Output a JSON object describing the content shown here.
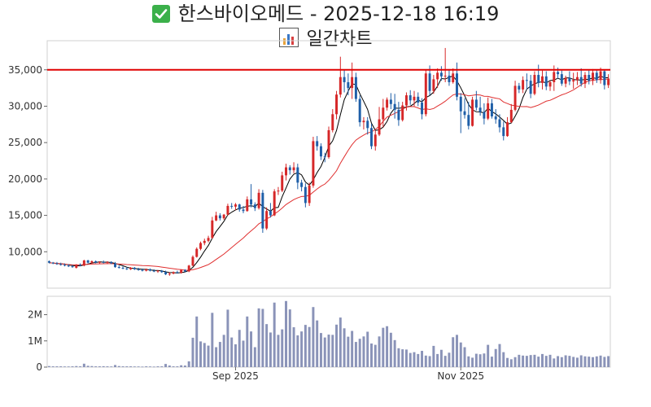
{
  "header": {
    "title": "한스바이오메드 - 2025-12-18 16:19",
    "subtitle": "일간차트",
    "check_icon": "check-mark-icon",
    "chart_icon": "bar-chart-icon",
    "check_color": "#3bb04a"
  },
  "chart_data": {
    "type": "candlestick",
    "up_color": "#d62728",
    "down_color": "#1f5fa8",
    "ma_short_color": "#000000",
    "ma_long_color": "#e03030",
    "hline_color": "#e00000",
    "volume_color": "#8a93b8",
    "price_axis": {
      "ticks": [
        10000,
        15000,
        20000,
        25000,
        30000,
        35000
      ],
      "tick_labels": [
        "10,000",
        "15,000",
        "20,000",
        "25,000",
        "30,000",
        "35,000"
      ],
      "ylim": [
        5000,
        39000
      ]
    },
    "volume_axis": {
      "ticks": [
        0,
        1000000,
        2000000
      ],
      "tick_labels": [
        "0",
        "1M",
        "2M"
      ],
      "ylim": [
        0,
        2700000
      ]
    },
    "x_tick_labels": [
      {
        "index": 48,
        "label": "Sep 2025"
      },
      {
        "index": 106,
        "label": "Nov 2025"
      }
    ],
    "reference_line": 35000,
    "n_sessions": 145,
    "candles": [
      [
        8700,
        8800,
        8400,
        8500
      ],
      [
        8500,
        8600,
        8300,
        8400
      ],
      [
        8400,
        8600,
        8200,
        8300
      ],
      [
        8300,
        8500,
        8100,
        8200
      ],
      [
        8200,
        8400,
        8000,
        8100
      ],
      [
        8100,
        8300,
        7900,
        8000
      ],
      [
        8000,
        8200,
        7800,
        7900
      ],
      [
        7800,
        8300,
        7700,
        8200
      ],
      [
        8200,
        8400,
        8000,
        8100
      ],
      [
        8100,
        8900,
        8000,
        8800
      ],
      [
        8800,
        8900,
        8400,
        8500
      ],
      [
        8500,
        8800,
        8300,
        8700
      ],
      [
        8700,
        8800,
        8400,
        8500
      ],
      [
        8500,
        8700,
        8300,
        8600
      ],
      [
        8600,
        8800,
        8400,
        8500
      ],
      [
        8500,
        8700,
        8300,
        8600
      ],
      [
        8600,
        8700,
        8300,
        8400
      ],
      [
        8400,
        8600,
        7800,
        7900
      ],
      [
        7900,
        8100,
        7700,
        7800
      ],
      [
        7800,
        8000,
        7600,
        7700
      ],
      [
        7700,
        7900,
        7500,
        7600
      ],
      [
        7600,
        7900,
        7500,
        7800
      ],
      [
        7800,
        7900,
        7500,
        7600
      ],
      [
        7600,
        7800,
        7400,
        7500
      ],
      [
        7500,
        7700,
        7300,
        7400
      ],
      [
        7400,
        7700,
        7300,
        7600
      ],
      [
        7600,
        7700,
        7300,
        7400
      ],
      [
        7400,
        7600,
        7200,
        7300
      ],
      [
        7300,
        7500,
        7100,
        7400
      ],
      [
        7400,
        7500,
        7100,
        7200
      ],
      [
        7200,
        7400,
        6800,
        6900
      ],
      [
        6900,
        7200,
        6700,
        7000
      ],
      [
        7000,
        7300,
        6900,
        7200
      ],
      [
        7200,
        7400,
        7000,
        7100
      ],
      [
        7100,
        7600,
        7000,
        7500
      ],
      [
        7500,
        7600,
        7200,
        7300
      ],
      [
        7300,
        8200,
        7200,
        8100
      ],
      [
        8100,
        9500,
        8000,
        9300
      ],
      [
        9300,
        10600,
        9200,
        10400
      ],
      [
        10400,
        11400,
        10200,
        11200
      ],
      [
        11200,
        11800,
        10900,
        11500
      ],
      [
        11500,
        12200,
        11300,
        11900
      ],
      [
        11900,
        14800,
        11800,
        14300
      ],
      [
        14300,
        15500,
        14200,
        15000
      ],
      [
        15000,
        15300,
        14300,
        14600
      ],
      [
        14600,
        15200,
        14400,
        15100
      ],
      [
        15100,
        16600,
        15000,
        16300
      ],
      [
        16300,
        16700,
        15900,
        16200
      ],
      [
        16200,
        16700,
        15700,
        16500
      ],
      [
        16500,
        16600,
        15500,
        15800
      ],
      [
        15800,
        16300,
        15300,
        15600
      ],
      [
        15600,
        17600,
        15500,
        17200
      ],
      [
        17200,
        19300,
        16100,
        16500
      ],
      [
        16500,
        16800,
        15600,
        16000
      ],
      [
        16000,
        18600,
        15800,
        18100
      ],
      [
        18100,
        18500,
        12600,
        13200
      ],
      [
        13200,
        16100,
        13000,
        15600
      ],
      [
        15600,
        16700,
        14700,
        15000
      ],
      [
        15000,
        18600,
        14900,
        18300
      ],
      [
        18300,
        18900,
        17800,
        18400
      ],
      [
        18400,
        21000,
        18200,
        20500
      ],
      [
        20500,
        22100,
        19800,
        21600
      ],
      [
        21600,
        21900,
        20600,
        21200
      ],
      [
        21200,
        22300,
        20800,
        21600
      ],
      [
        21600,
        22100,
        18600,
        19500
      ],
      [
        19500,
        19900,
        18300,
        18900
      ],
      [
        18900,
        19400,
        16100,
        16700
      ],
      [
        16700,
        19500,
        16300,
        19100
      ],
      [
        19100,
        25800,
        18800,
        25200
      ],
      [
        25200,
        25900,
        23900,
        24500
      ],
      [
        24500,
        24900,
        22600,
        23100
      ],
      [
        23100,
        23600,
        22300,
        23000
      ],
      [
        23000,
        27200,
        22800,
        26700
      ],
      [
        26700,
        29600,
        26400,
        28900
      ],
      [
        28900,
        32100,
        28200,
        31600
      ],
      [
        31600,
        36800,
        31200,
        34000
      ],
      [
        34000,
        35000,
        31900,
        33300
      ],
      [
        33300,
        34500,
        31500,
        32500
      ],
      [
        32500,
        36000,
        31000,
        34000
      ],
      [
        34000,
        34600,
        30600,
        31000
      ],
      [
        31000,
        31500,
        27200,
        27800
      ],
      [
        27800,
        28500,
        26800,
        28000
      ],
      [
        28000,
        28500,
        26100,
        27000
      ],
      [
        27000,
        27600,
        24100,
        24500
      ],
      [
        24500,
        26600,
        23900,
        26100
      ],
      [
        26100,
        29900,
        25900,
        28200
      ],
      [
        28200,
        31000,
        27100,
        29800
      ],
      [
        29800,
        31200,
        29400,
        30900
      ],
      [
        30900,
        31800,
        29600,
        30300
      ],
      [
        30300,
        31700,
        28300,
        29500
      ],
      [
        29500,
        30600,
        27300,
        28100
      ],
      [
        28100,
        30600,
        27900,
        30100
      ],
      [
        30100,
        31900,
        29400,
        31500
      ],
      [
        31500,
        32200,
        30200,
        30800
      ],
      [
        30800,
        32100,
        30000,
        31300
      ],
      [
        31300,
        31900,
        30000,
        30500
      ],
      [
        30500,
        31100,
        28200,
        28900
      ],
      [
        28900,
        35000,
        28600,
        34500
      ],
      [
        34500,
        35600,
        31500,
        32100
      ],
      [
        32100,
        34300,
        31700,
        33700
      ],
      [
        33700,
        35200,
        32500,
        34600
      ],
      [
        34600,
        35500,
        33500,
        34100
      ],
      [
        34100,
        38000,
        33300,
        34200
      ],
      [
        34200,
        35100,
        32800,
        33300
      ],
      [
        33300,
        35200,
        33100,
        34500
      ],
      [
        34500,
        36000,
        30800,
        31300
      ],
      [
        31300,
        31800,
        26300,
        29300
      ],
      [
        29300,
        31100,
        28300,
        28800
      ],
      [
        28800,
        30600,
        26800,
        27300
      ],
      [
        27300,
        31300,
        27200,
        30900
      ],
      [
        30900,
        32100,
        29400,
        29800
      ],
      [
        29800,
        31300,
        28700,
        29200
      ],
      [
        29200,
        30400,
        27500,
        28300
      ],
      [
        28300,
        31200,
        28100,
        30400
      ],
      [
        30400,
        31000,
        28300,
        28600
      ],
      [
        28600,
        29600,
        27600,
        28200
      ],
      [
        28200,
        28900,
        26400,
        27100
      ],
      [
        27100,
        27900,
        25300,
        25900
      ],
      [
        25900,
        28500,
        25800,
        27800
      ],
      [
        27800,
        30300,
        27700,
        29500
      ],
      [
        29500,
        33500,
        29300,
        32800
      ],
      [
        32800,
        33200,
        31800,
        32300
      ],
      [
        32300,
        34100,
        31800,
        33600
      ],
      [
        33600,
        34500,
        32300,
        33500
      ],
      [
        33500,
        34300,
        31100,
        31700
      ],
      [
        31700,
        34800,
        31500,
        34300
      ],
      [
        34300,
        35700,
        32600,
        33200
      ],
      [
        33200,
        34900,
        32300,
        34100
      ],
      [
        34100,
        34800,
        32200,
        32700
      ],
      [
        32700,
        33500,
        32100,
        33300
      ],
      [
        33300,
        35600,
        32100,
        34700
      ],
      [
        34700,
        35300,
        33800,
        34400
      ],
      [
        34400,
        34900,
        32800,
        33100
      ],
      [
        33100,
        34200,
        32600,
        33900
      ],
      [
        33900,
        34800,
        32900,
        33400
      ],
      [
        33400,
        34600,
        32400,
        33600
      ],
      [
        33600,
        34700,
        32900,
        34000
      ],
      [
        34000,
        35200,
        32700,
        33100
      ],
      [
        33100,
        34700,
        32500,
        34300
      ],
      [
        34300,
        34900,
        33000,
        33500
      ],
      [
        33500,
        35100,
        32900,
        34600
      ],
      [
        34600,
        35000,
        33200,
        33600
      ],
      [
        33600,
        35300,
        33100,
        34800
      ],
      [
        34800,
        35000,
        32300,
        32900
      ],
      [
        32900,
        34400,
        32500,
        33800
      ]
    ],
    "volumes": [
      40000,
      30000,
      30000,
      30000,
      25000,
      25000,
      30000,
      40000,
      30000,
      130000,
      50000,
      40000,
      30000,
      30000,
      35000,
      30000,
      25000,
      80000,
      40000,
      30000,
      30000,
      30000,
      25000,
      25000,
      20000,
      30000,
      25000,
      20000,
      30000,
      30000,
      120000,
      60000,
      30000,
      30000,
      70000,
      60000,
      220000,
      1120000,
      1930000,
      980000,
      920000,
      820000,
      2070000,
      760000,
      960000,
      1230000,
      2190000,
      1130000,
      870000,
      1420000,
      1010000,
      1930000,
      1360000,
      760000,
      2240000,
      2220000,
      1640000,
      1320000,
      2460000,
      1230000,
      1440000,
      2520000,
      2200000,
      1520000,
      1210000,
      1360000,
      1610000,
      1530000,
      2290000,
      1780000,
      1300000,
      1130000,
      1240000,
      1230000,
      1620000,
      1890000,
      1480000,
      1160000,
      1380000,
      960000,
      1080000,
      1170000,
      1350000,
      900000,
      850000,
      1170000,
      1500000,
      1560000,
      1310000,
      1030000,
      720000,
      680000,
      670000,
      540000,
      570000,
      500000,
      620000,
      440000,
      420000,
      810000,
      500000,
      660000,
      430000,
      550000,
      1140000,
      1230000,
      940000,
      760000,
      410000,
      360000,
      510000,
      490000,
      520000,
      850000,
      400000,
      690000,
      880000,
      570000,
      350000,
      300000,
      380000,
      470000,
      440000,
      430000,
      460000,
      470000,
      400000,
      500000,
      430000,
      470000,
      330000,
      420000,
      380000,
      450000,
      430000,
      390000,
      360000,
      450000,
      410000,
      400000,
      380000,
      410000,
      440000,
      390000,
      420000
    ]
  }
}
